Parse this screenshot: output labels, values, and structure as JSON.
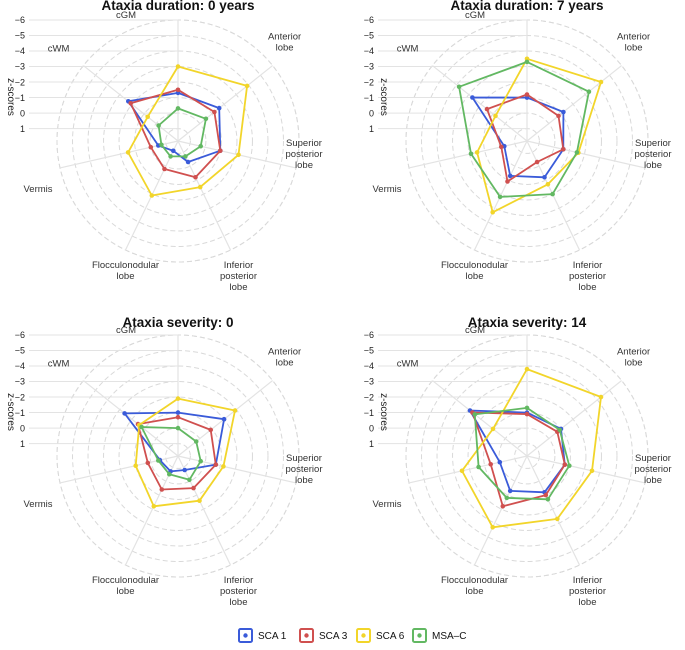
{
  "colors": {
    "SCA 1": "#3a5bd9",
    "SCA 3": "#d0504f",
    "SCA 6": "#f2d52a",
    "MSA-C": "#62b862",
    "grid": "#d9d9d9",
    "spoke": "#e3e3e3"
  },
  "chart_data": [
    {
      "type": "radar",
      "title": "Ataxia duration:  0 years",
      "ylabel": "z-scores",
      "categories": [
        "cGM",
        "Anterior lobe",
        "Superior posterior lobe",
        "Inferior posterior lobe",
        "Flocculonodular lobe",
        "Vermis",
        "cWM"
      ],
      "category_lines": [
        [
          "cGM"
        ],
        [
          "Anterior",
          "lobe"
        ],
        [
          "Superior",
          "posterior",
          "lobe"
        ],
        [
          "Inferior",
          "posterior",
          "lobe"
        ],
        [
          "Flocculonodular",
          "lobe"
        ],
        [
          "Vermis"
        ],
        [
          "cWM"
        ]
      ],
      "ticks": [
        "−6",
        "−5",
        "−4",
        "−3",
        "−2",
        "−1",
        "0",
        "1"
      ],
      "tick_values": [
        -6,
        -5,
        -4,
        -3,
        -2,
        -1,
        0,
        1
      ],
      "rlim": [
        1.8,
        -6
      ],
      "series": [
        {
          "name": "SCA 1",
          "values": [
            -1.3,
            -1.6,
            -1.0,
            0.3,
            1.1,
            0.5,
            -2.3
          ]
        },
        {
          "name": "SCA 3",
          "values": [
            -1.5,
            -1.2,
            -1.0,
            -0.8,
            -0.2,
            0.0,
            -2.1
          ]
        },
        {
          "name": "SCA 6",
          "values": [
            -3.0,
            -3.9,
            -2.2,
            -1.5,
            -2.1,
            -1.5,
            -0.7
          ]
        },
        {
          "name": "MSA-C",
          "values": [
            -0.3,
            -0.5,
            0.3,
            0.7,
            0.7,
            0.7,
            0.2
          ]
        }
      ]
    },
    {
      "type": "radar",
      "title": "Ataxia duration:  7 years",
      "ylabel": "z-scores",
      "categories": [
        "cGM",
        "Anterior lobe",
        "Superior posterior lobe",
        "Inferior posterior lobe",
        "Flocculonodular lobe",
        "Vermis",
        "cWM"
      ],
      "category_lines": [
        [
          "cGM"
        ],
        [
          "Anterior",
          "lobe"
        ],
        [
          "Superior",
          "posterior",
          "lobe"
        ],
        [
          "Inferior",
          "posterior",
          "lobe"
        ],
        [
          "Flocculonodular",
          "lobe"
        ],
        [
          "Vermis"
        ],
        [
          "cWM"
        ]
      ],
      "ticks": [
        "−6",
        "−5",
        "−4",
        "−3",
        "−2",
        "−1",
        "0",
        "1"
      ],
      "tick_values": [
        -6,
        -5,
        -4,
        -3,
        -2,
        -1,
        0,
        1
      ],
      "rlim": [
        1.8,
        -6
      ],
      "series": [
        {
          "name": "SCA 1",
          "values": [
            -1.0,
            -1.2,
            -0.6,
            -0.8,
            -0.7,
            0.3,
            -2.7
          ]
        },
        {
          "name": "SCA 3",
          "values": [
            -1.2,
            -0.8,
            -0.6,
            0.3,
            -1.1,
            0.1,
            -1.5
          ]
        },
        {
          "name": "SCA 6",
          "values": [
            -3.5,
            -4.3,
            -1.6,
            -1.3,
            -3.3,
            -1.5,
            -0.8
          ]
        },
        {
          "name": "MSA-C",
          "values": [
            -3.3,
            -3.3,
            -1.5,
            -2.0,
            -2.2,
            -1.9,
            -3.8
          ]
        }
      ]
    },
    {
      "type": "radar",
      "title": "Ataxia severity:  0",
      "ylabel": "z-scores",
      "categories": [
        "cGM",
        "Anterior lobe",
        "Superior posterior lobe",
        "Inferior posterior lobe",
        "Flocculonodular lobe",
        "Vermis",
        "cWM"
      ],
      "category_lines": [
        [
          "cGM"
        ],
        [
          "Anterior",
          "lobe"
        ],
        [
          "Superior",
          "posterior",
          "lobe"
        ],
        [
          "Inferior",
          "posterior",
          "lobe"
        ],
        [
          "Flocculonodular",
          "lobe"
        ],
        [
          "Vermis"
        ],
        [
          "cWM"
        ]
      ],
      "ticks": [
        "−6",
        "−5",
        "−4",
        "−3",
        "−2",
        "−1",
        "0",
        "1"
      ],
      "tick_values": [
        -6,
        -5,
        -4,
        -3,
        -2,
        -1,
        0,
        1
      ],
      "rlim": [
        1.8,
        -6
      ],
      "series": [
        {
          "name": "SCA 1",
          "values": [
            -1.0,
            -2.0,
            -0.7,
            0.8,
            0.7,
            0.6,
            -2.6
          ]
        },
        {
          "name": "SCA 3",
          "values": [
            -0.7,
            -0.9,
            -0.7,
            -0.5,
            -0.6,
            -0.2,
            -1.5
          ]
        },
        {
          "name": "SCA 6",
          "values": [
            -1.9,
            -2.9,
            -1.2,
            -1.4,
            -1.8,
            -1.0,
            -1.4
          ]
        },
        {
          "name": "MSA-C",
          "values": [
            0.0,
            0.3,
            0.3,
            0.1,
            0.5,
            0.5,
            -1.2
          ]
        }
      ]
    },
    {
      "type": "radar",
      "title": "Ataxia severity:  14",
      "ylabel": "z-scores",
      "categories": [
        "cGM",
        "Anterior lobe",
        "Superior posterior lobe",
        "Inferior posterior lobe",
        "Flocculonodular lobe",
        "Vermis",
        "cWM"
      ],
      "category_lines": [
        [
          "cGM"
        ],
        [
          "Anterior",
          "lobe"
        ],
        [
          "Superior",
          "posterior",
          "lobe"
        ],
        [
          "Inferior",
          "posterior",
          "lobe"
        ],
        [
          "Flocculonodular",
          "lobe"
        ],
        [
          "Vermis"
        ],
        [
          "cWM"
        ]
      ],
      "ticks": [
        "−6",
        "−5",
        "−4",
        "−3",
        "−2",
        "−1",
        "0",
        "1"
      ],
      "tick_values": [
        -6,
        -5,
        -4,
        -3,
        -2,
        -1,
        0,
        1
      ],
      "rlim": [
        1.8,
        -6
      ],
      "series": [
        {
          "name": "SCA 1",
          "values": [
            -1.0,
            -1.0,
            -0.7,
            -0.8,
            -0.7,
            0.0,
            -2.9
          ]
        },
        {
          "name": "SCA 3",
          "values": [
            -0.9,
            -0.7,
            -0.7,
            -1.0,
            -1.8,
            -0.6,
            -2.7
          ]
        },
        {
          "name": "SCA 6",
          "values": [
            -3.8,
            -4.3,
            -2.5,
            -2.7,
            -3.3,
            -2.5,
            -1.0
          ]
        },
        {
          "name": "MSA-C",
          "values": [
            -1.3,
            -0.9,
            -1.0,
            -1.3,
            -1.2,
            -1.4,
            -2.5
          ]
        }
      ]
    }
  ],
  "legend": {
    "position": "bottom",
    "items": [
      "SCA 1",
      "SCA 3",
      "SCA 6",
      "MSA–C"
    ]
  }
}
